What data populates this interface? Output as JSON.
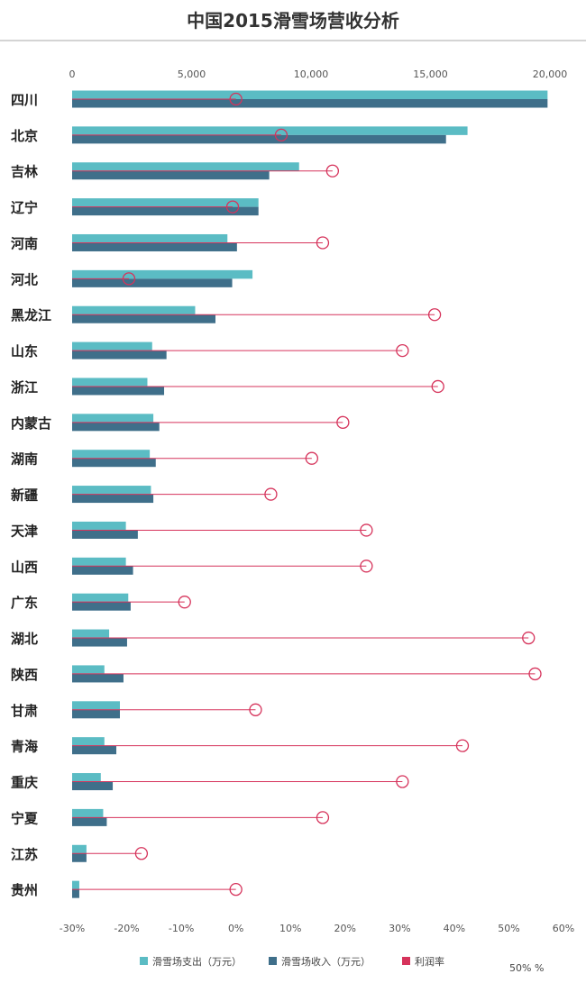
{
  "chart_data": {
    "type": "bar",
    "title": "中国2015滑雪场营收分析",
    "categories": [
      "四川",
      "北京",
      "吉林",
      "辽宁",
      "河南",
      "河北",
      "黑龙江",
      "山东",
      "浙江",
      "内蒙古",
      "湖南",
      "新疆",
      "天津",
      "山西",
      "广东",
      "湖北",
      "陕西",
      "甘肃",
      "青海",
      "重庆",
      "宁夏",
      "江苏",
      "贵州"
    ],
    "series": [
      {
        "name": "滑雪场支出（万元）",
        "color": "#5bbcc4",
        "values": [
          19900,
          16550,
          9500,
          7800,
          6500,
          7550,
          5150,
          3350,
          3150,
          3400,
          3250,
          3300,
          2250,
          2250,
          2350,
          1550,
          1350,
          2000,
          1350,
          1200,
          1300,
          600,
          300
        ]
      },
      {
        "name": "滑雪场收入（万元）",
        "color": "#3f6f8a",
        "values": [
          19900,
          15650,
          8250,
          7800,
          6900,
          6700,
          6000,
          3950,
          3850,
          3650,
          3500,
          3400,
          2750,
          2550,
          2450,
          2300,
          2150,
          2000,
          1850,
          1700,
          1450,
          600,
          300
        ]
      },
      {
        "name": "利润率",
        "color": "#d6335b",
        "values": [
          0.0,
          8.3,
          17.7,
          -0.6,
          15.9,
          -19.6,
          36.4,
          30.5,
          37.0,
          19.6,
          13.9,
          6.4,
          23.9,
          23.9,
          -9.4,
          53.6,
          54.8,
          3.6,
          41.5,
          30.5,
          15.9,
          -17.3,
          0.0
        ]
      }
    ],
    "xaxis_top": {
      "ticks": [
        "0",
        "5,000",
        "10,000",
        "15,000",
        "20,000"
      ],
      "values": [
        0,
        5000,
        10000,
        15000,
        20000
      ],
      "range": [
        0,
        20000
      ]
    },
    "xaxis_bottom": {
      "ticks": [
        "-30%",
        "-20%",
        "-10%",
        "0%",
        "10%",
        "20%",
        "30%",
        "40%",
        "50%",
        "60%"
      ],
      "values": [
        -30,
        -20,
        -10,
        0,
        10,
        20,
        30,
        40,
        50,
        60
      ],
      "range": [
        -30,
        60
      ]
    },
    "legend_position": "bottom",
    "grid": false,
    "footer_text": "50% %"
  }
}
